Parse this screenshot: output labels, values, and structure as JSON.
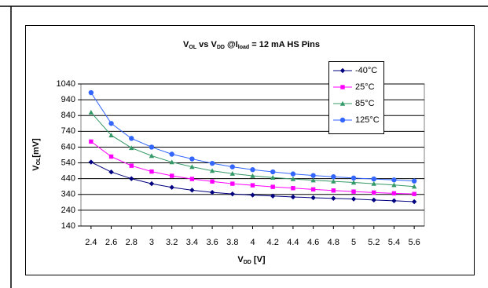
{
  "chart_data": {
    "type": "line",
    "title_parts": [
      "V",
      "OL",
      " vs V",
      "DD",
      " @I",
      "load",
      " = 12 mA HS Pins"
    ],
    "ylabel_parts": [
      "V",
      "OL",
      "[mV]"
    ],
    "xlabel_parts": [
      "V",
      "DD",
      " [V]"
    ],
    "x": [
      2.4,
      2.6,
      2.8,
      3,
      3.2,
      3.4,
      3.6,
      3.8,
      4,
      4.2,
      4.4,
      4.6,
      4.8,
      5,
      5.2,
      5.4,
      5.6
    ],
    "xlim": [
      2.3,
      5.7
    ],
    "xticks": [
      2.4,
      2.6,
      2.8,
      3,
      3.2,
      3.4,
      3.6,
      3.8,
      4,
      4.2,
      4.4,
      4.6,
      4.8,
      5,
      5.2,
      5.4,
      5.6
    ],
    "ylim": [
      140,
      1040
    ],
    "yticks": [
      140,
      240,
      340,
      440,
      540,
      640,
      740,
      840,
      940,
      1040
    ],
    "grid": true,
    "legend": "upper right",
    "series": [
      {
        "name": "-40°C",
        "color": "#000080",
        "marker": "diamond",
        "values": [
          545,
          482,
          440,
          408,
          385,
          367,
          353,
          343,
          336,
          330,
          324,
          319,
          315,
          311,
          305,
          300,
          294
        ]
      },
      {
        "name": "25°C",
        "color": "#ff00ff",
        "marker": "square",
        "values": [
          675,
          580,
          522,
          485,
          458,
          438,
          422,
          408,
          398,
          388,
          380,
          372,
          365,
          358,
          352,
          347,
          343
        ]
      },
      {
        "name": "85°C",
        "color": "#339966",
        "marker": "triangle",
        "values": [
          860,
          715,
          635,
          585,
          545,
          515,
          490,
          472,
          458,
          447,
          438,
          430,
          423,
          416,
          408,
          400,
          390
        ]
      },
      {
        "name": "125°C",
        "color": "#3366ff",
        "marker": "circle",
        "values": [
          985,
          790,
          695,
          640,
          595,
          565,
          537,
          515,
          497,
          483,
          470,
          460,
          452,
          444,
          438,
          432,
          425
        ]
      }
    ]
  }
}
